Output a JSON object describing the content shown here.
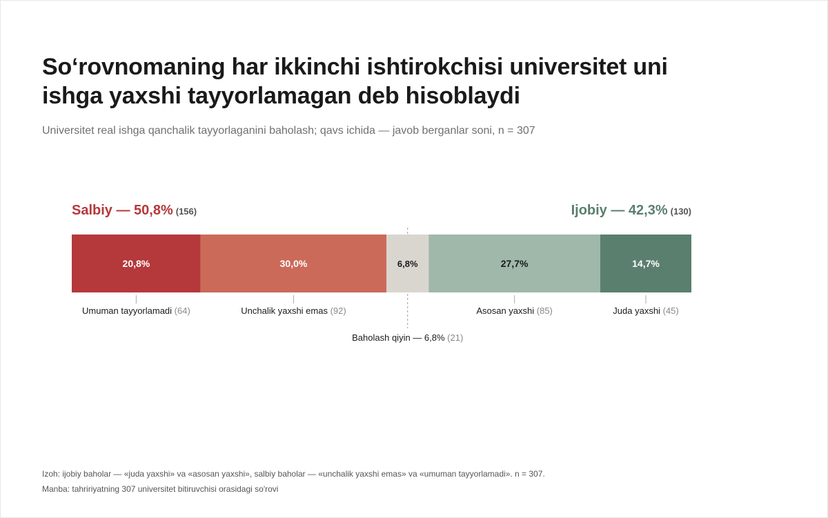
{
  "title": "So‘rovnomaning har ikkinchi ishtirokchisi universitet uni ishga yaxshi tayyorlamagan deb hisoblaydi",
  "subtitle": "Universitet real ishga qanchalik tayyorlaganini baholash; qavs ichida — javob berganlar soni, n = 307",
  "groups": {
    "negative": {
      "label": "Salbiy — 50,8%",
      "count": "(156)",
      "color": "#b5383b"
    },
    "positive": {
      "label": "Ijobiy — 42,3%",
      "count": "(130)",
      "color": "#5a7f6f"
    }
  },
  "chart_data": {
    "type": "bar",
    "orientation": "horizontal-stacked",
    "n": 307,
    "segments": [
      {
        "name": "Umuman tayyorlamadi",
        "value": 20.8,
        "value_label": "20,8%",
        "count": 64,
        "count_label": "(64)",
        "color": "#b5383b",
        "text_color": "#ffffff"
      },
      {
        "name": "Unchalik yaxshi emas",
        "value": 30.0,
        "value_label": "30,0%",
        "count": 92,
        "count_label": "(92)",
        "color": "#cc6a5a",
        "text_color": "#ffffff"
      },
      {
        "name": "Baholash qiyin — 6,8%",
        "value": 6.8,
        "value_label": "6,8%",
        "count": 21,
        "count_label": "(21)",
        "color": "#d9d6d0",
        "text_color": "#1a1a1a"
      },
      {
        "name": "Asosan yaxshi",
        "value": 27.7,
        "value_label": "27,7%",
        "count": 85,
        "count_label": "(85)",
        "color": "#9fb8aa",
        "text_color": "#1a1a1a"
      },
      {
        "name": "Juda yaxshi",
        "value": 14.7,
        "value_label": "14,7%",
        "count": 45,
        "count_label": "(45)",
        "color": "#5a7f6f",
        "text_color": "#ffffff"
      }
    ]
  },
  "notes": {
    "izoh": "Izoh: ijobiy baholar — «juda yaxshi» va «asosan yaxshi», salbiy baholar — «unchalik yaxshi emas» va «umuman tayyorlamadi». n = 307.",
    "manba": "Manba: tahririyatning 307 universitet bitiruvchisi orasidagi so'rovi"
  }
}
